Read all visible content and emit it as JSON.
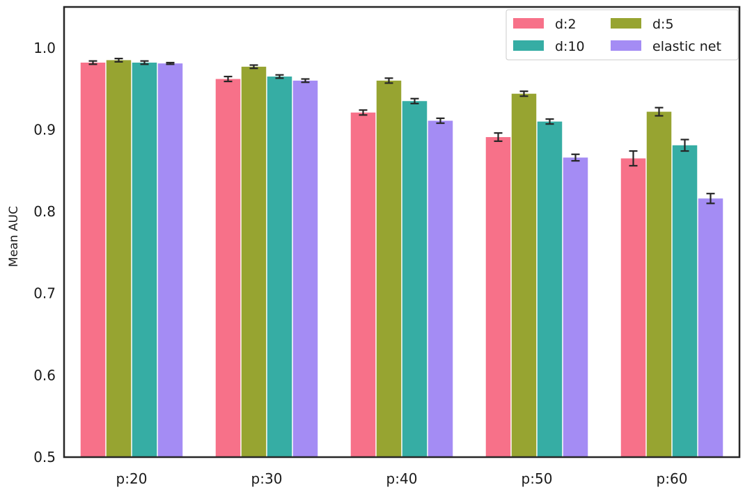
{
  "chart_data": {
    "type": "bar",
    "title": "",
    "xlabel": "",
    "ylabel": "Mean AUC",
    "ylim": [
      0.5,
      1.05
    ],
    "yticks": [
      0.5,
      0.6,
      0.7,
      0.8,
      0.9,
      1.0
    ],
    "ytick_labels": [
      "0.5",
      "0.6",
      "0.7",
      "0.8",
      "0.9",
      "1.0"
    ],
    "categories": [
      "p:20",
      "p:30",
      "p:40",
      "p:50",
      "p:60"
    ],
    "grid": false,
    "legend": {
      "position": "top-right",
      "columns": 2
    },
    "series": [
      {
        "name": "d:2",
        "color": "#f77189",
        "values": [
          0.982,
          0.962,
          0.921,
          0.891,
          0.865
        ],
        "errors": [
          0.002,
          0.003,
          0.003,
          0.005,
          0.009
        ]
      },
      {
        "name": "d:5",
        "color": "#97a431",
        "values": [
          0.985,
          0.977,
          0.96,
          0.944,
          0.922
        ],
        "errors": [
          0.002,
          0.002,
          0.003,
          0.003,
          0.005
        ]
      },
      {
        "name": "d:10",
        "color": "#36ada4",
        "values": [
          0.982,
          0.965,
          0.935,
          0.91,
          0.881
        ],
        "errors": [
          0.002,
          0.002,
          0.003,
          0.003,
          0.007
        ]
      },
      {
        "name": "elastic net",
        "color": "#a48cf4",
        "values": [
          0.981,
          0.96,
          0.911,
          0.866,
          0.816
        ],
        "errors": [
          0.001,
          0.002,
          0.003,
          0.004,
          0.006
        ]
      }
    ]
  }
}
